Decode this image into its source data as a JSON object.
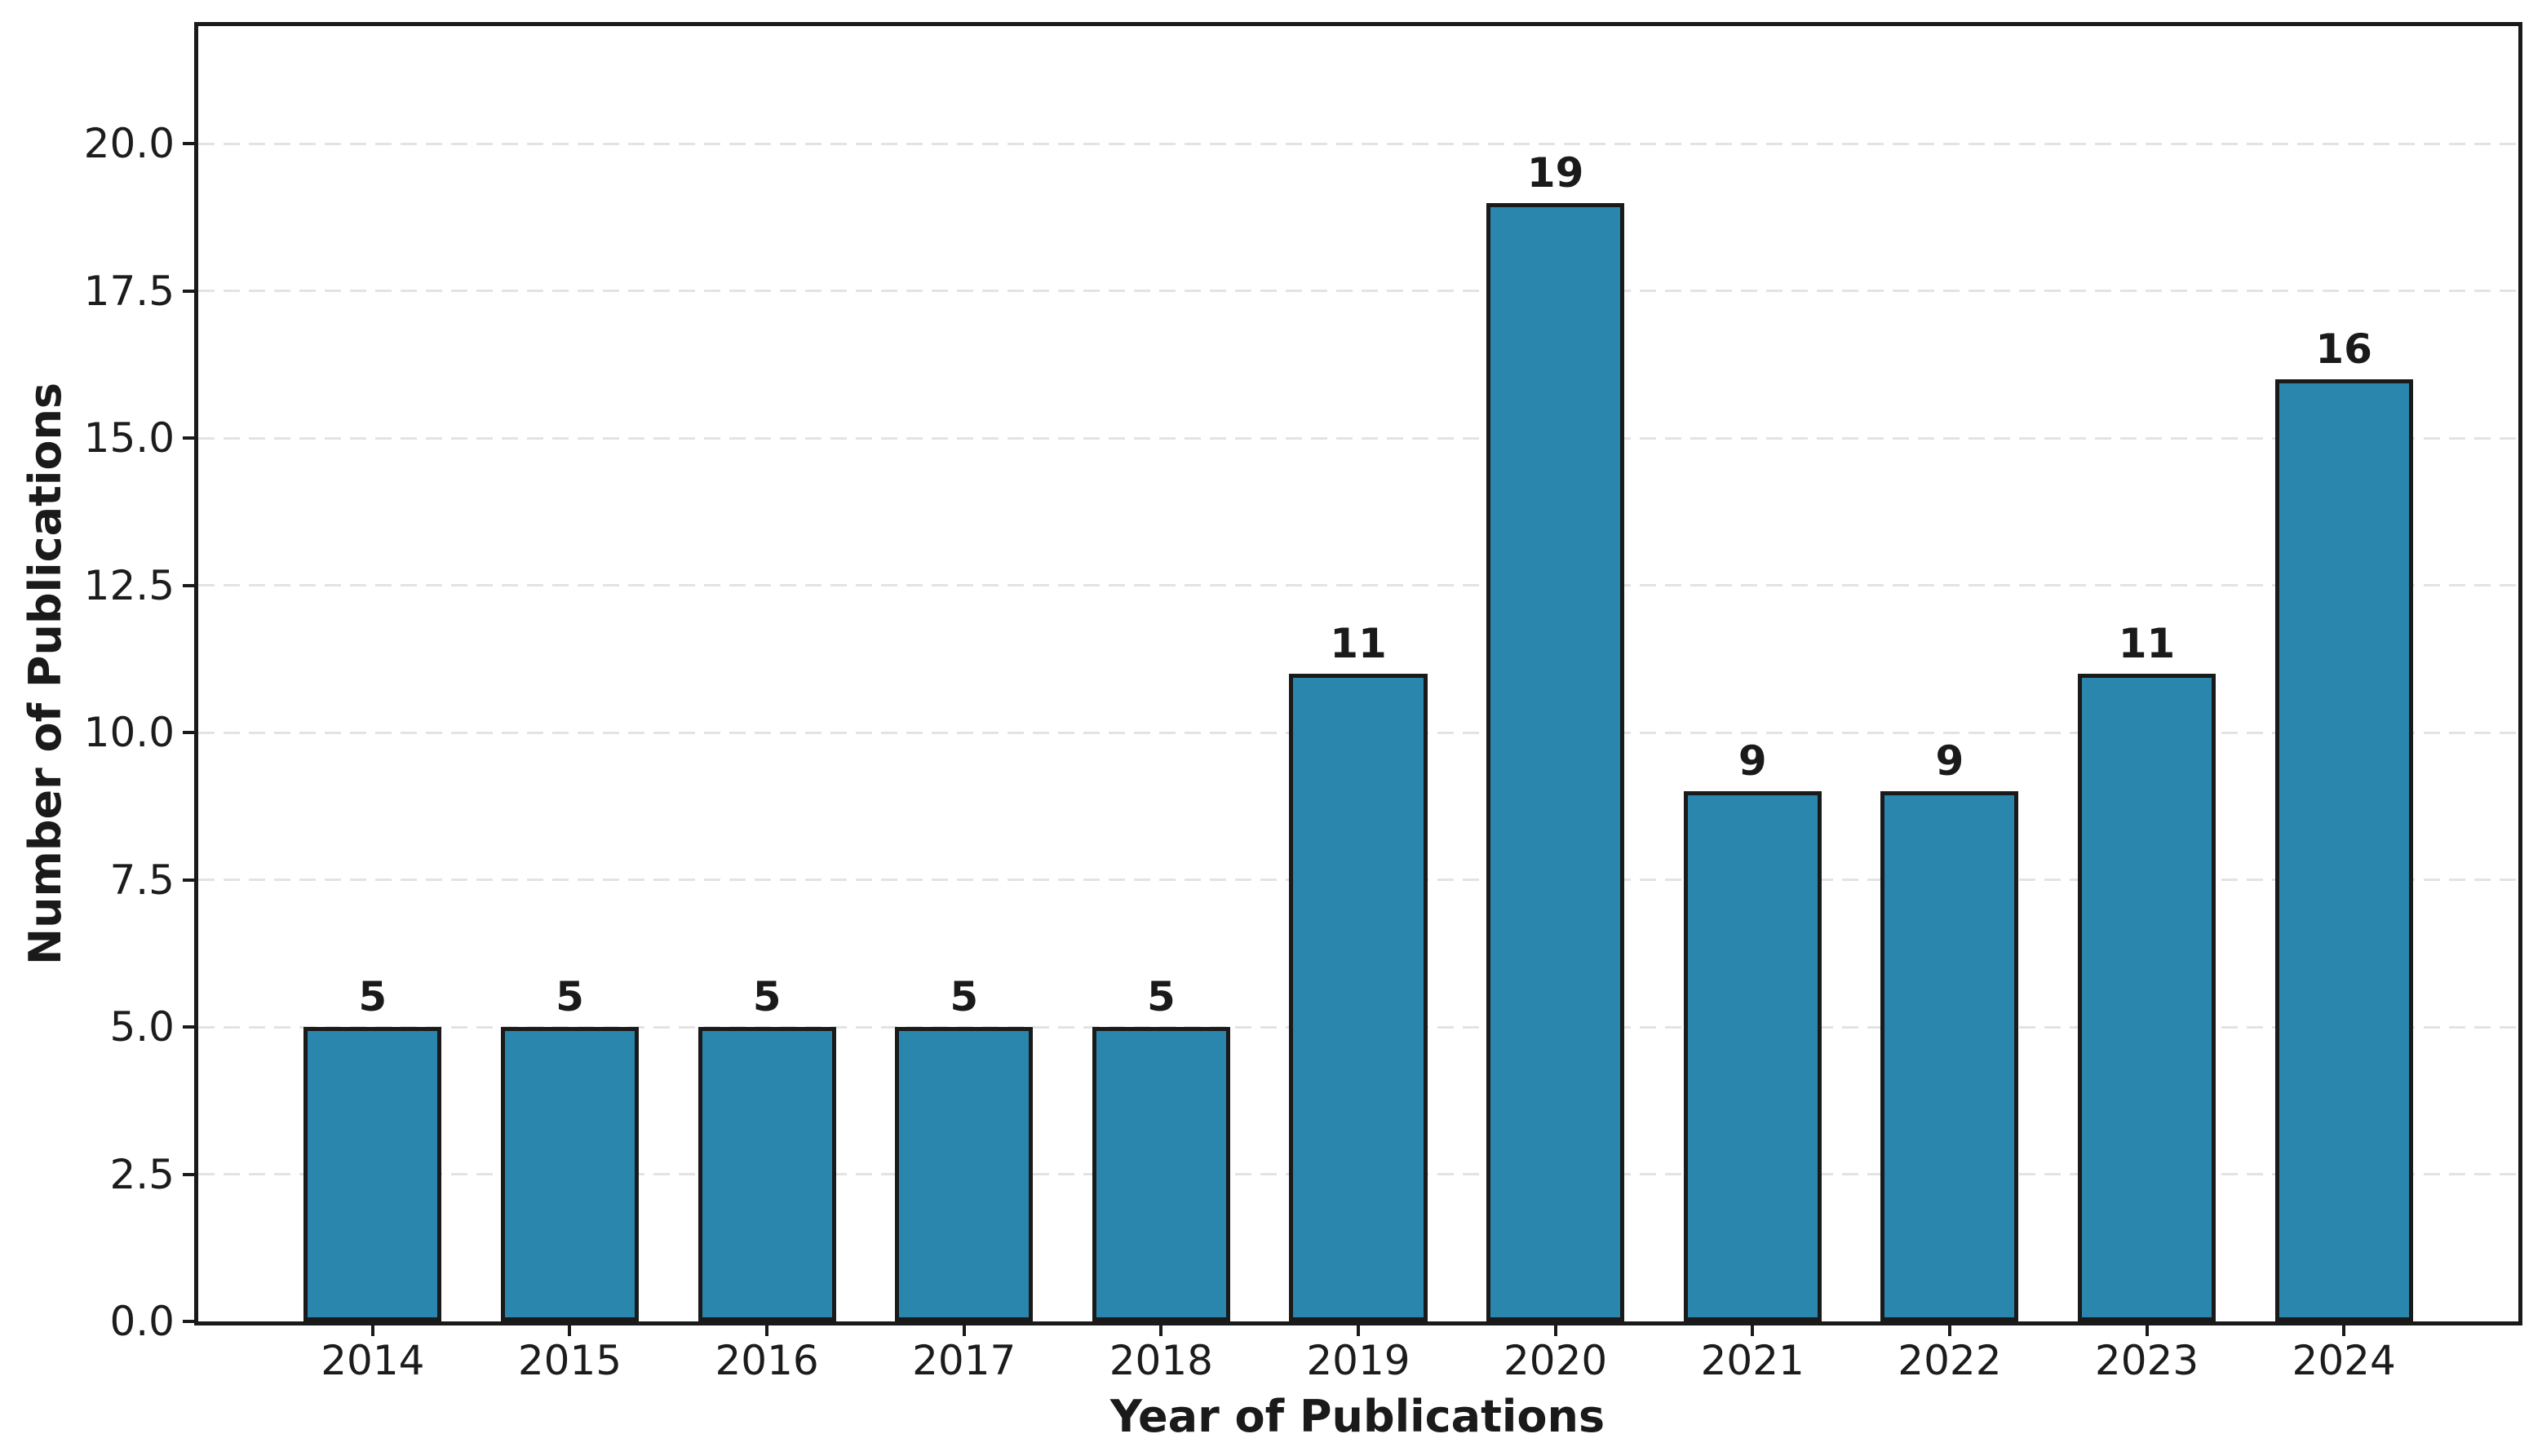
{
  "chart_data": {
    "type": "bar",
    "title": "",
    "xlabel": "Year of Publications",
    "ylabel": "Number of Publications",
    "categories": [
      "2014",
      "2015",
      "2016",
      "2017",
      "2018",
      "2019",
      "2020",
      "2021",
      "2022",
      "2023",
      "2024"
    ],
    "values": [
      5,
      5,
      5,
      5,
      5,
      11,
      19,
      9,
      9,
      11,
      16
    ],
    "value_labels": [
      "5",
      "5",
      "5",
      "5",
      "5",
      "11",
      "19",
      "9",
      "9",
      "11",
      "16"
    ],
    "ylim": [
      0,
      22
    ],
    "xlim": [
      2013.115,
      2024.885
    ],
    "yticks": [
      0.0,
      2.5,
      5.0,
      7.5,
      10.0,
      12.5,
      15.0,
      17.5,
      20.0
    ],
    "ytick_labels": [
      "0.0",
      "2.5",
      "5.0",
      "7.5",
      "10.0",
      "12.5",
      "15.0",
      "17.5",
      "20.0"
    ],
    "bar_width_data_units": 0.7,
    "grid": "horizontal-dashed",
    "legend": "none",
    "colors": {
      "bar_fill": "#2a86ad",
      "bar_edge": "#1a1a1a",
      "gridline": "#e3e3e3",
      "spine": "#1a1a1a",
      "text": "#1c1c1c",
      "background": "#ffffff"
    }
  }
}
